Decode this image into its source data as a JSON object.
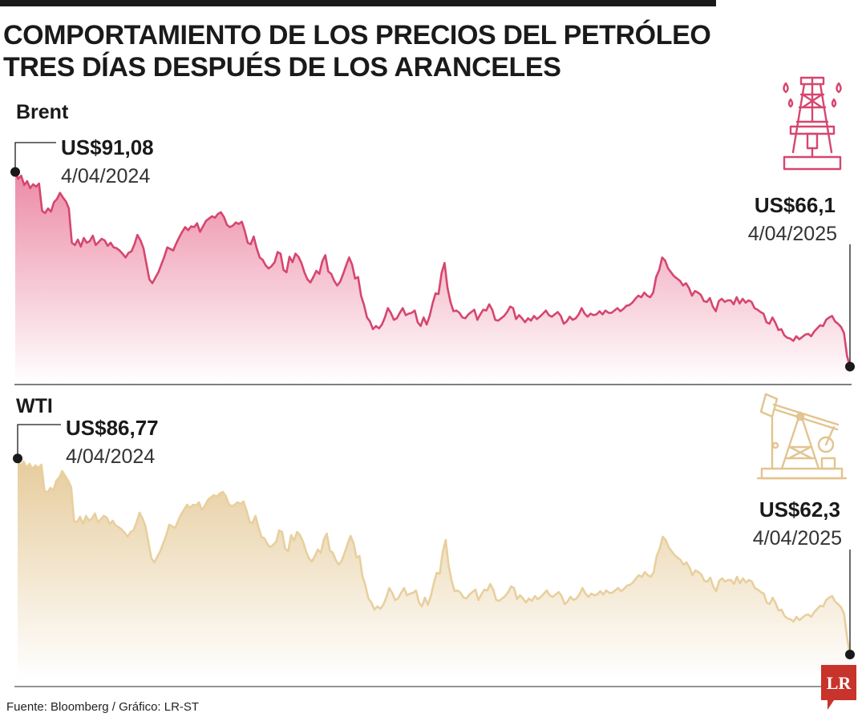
{
  "title_lines": [
    "COMPORTAMIENTO DE LOS PRECIOS DEL PETRÓLEO",
    "TRES DÍAS DESPUÉS DE LOS ARANCELES"
  ],
  "source": "Fuente: Bloomberg / Gráfico: LR-ST",
  "logo_text": "LR",
  "colors": {
    "brent": "#d6466f",
    "brent_fill": "#ee8ba8",
    "wti": "#e8cf9e",
    "wti_fill": "#e8d2a6",
    "ink": "#1a1a1a",
    "logo": "#c8332b"
  },
  "icons": {
    "brent": "oil-derrick-icon",
    "wti": "pumpjack-icon"
  },
  "chart_data": [
    {
      "type": "area",
      "series_label": "Brent",
      "start": {
        "value_label": "US$91,08",
        "date_label": "4/04/2024",
        "value": 91.08
      },
      "end": {
        "value_label": "US$66,1",
        "date_label": "4/04/2025",
        "value": 66.1
      },
      "x_range": [
        "4/04/2024",
        "4/04/2025"
      ],
      "ylim": [
        64,
        93
      ],
      "grid": false,
      "values": [
        91.08,
        90.2,
        90.6,
        89.4,
        89.9,
        89.0,
        89.5,
        89.2,
        89.6,
        86.1,
        85.8,
        86.4,
        86.0,
        87.2,
        87.6,
        88.4,
        87.8,
        87.3,
        86.4,
        82.0,
        81.7,
        82.4,
        81.5,
        82.6,
        82.0,
        82.2,
        82.9,
        81.7,
        82.1,
        82.5,
        82.3,
        81.6,
        82.0,
        81.4,
        81.3,
        81.0,
        80.6,
        80.1,
        80.7,
        80.9,
        81.8,
        83.0,
        82.3,
        81.3,
        79.3,
        77.3,
        76.8,
        77.5,
        78.2,
        79.2,
        80.2,
        81.4,
        81.2,
        81.0,
        81.9,
        82.7,
        83.4,
        84.0,
        83.6,
        84.1,
        84.0,
        84.5,
        83.4,
        84.1,
        84.8,
        85.1,
        85.4,
        85.2,
        85.7,
        85.9,
        85.3,
        84.3,
        84.0,
        84.2,
        84.6,
        84.4,
        84.7,
        83.5,
        82.0,
        81.8,
        82.8,
        81.3,
        80.1,
        79.8,
        79.1,
        78.7,
        79.0,
        79.5,
        80.8,
        80.6,
        78.5,
        78.2,
        80.2,
        79.5,
        80.6,
        80.2,
        79.4,
        78.2,
        77.3,
        76.9,
        77.6,
        78.4,
        78.0,
        79.6,
        80.4,
        78.3,
        78.0,
        77.1,
        76.5,
        77.0,
        78.0,
        79.1,
        80.1,
        79.2,
        77.4,
        77.6,
        75.2,
        74.0,
        72.4,
        71.9,
        70.9,
        71.3,
        71.0,
        71.5,
        72.4,
        73.6,
        73.0,
        72.1,
        72.3,
        73.0,
        73.6,
        72.7,
        72.9,
        73.0,
        73.3,
        71.8,
        71.3,
        72.4,
        71.5,
        72.6,
        74.2,
        75.5,
        75.4,
        78.1,
        79.4,
        76.2,
        74.4,
        73.2,
        73.3,
        73.0,
        72.4,
        72.3,
        72.8,
        73.1,
        73.4,
        72.1,
        72.8,
        73.4,
        73.3,
        74.1,
        73.4,
        72.1,
        72.0,
        72.3,
        72.6,
        73.1,
        73.8,
        73.6,
        72.2,
        72.7,
        72.3,
        71.8,
        72.3,
        72.0,
        72.6,
        72.2,
        72.5,
        72.9,
        73.3,
        72.7,
        72.5,
        72.8,
        73.1,
        72.6,
        71.6,
        71.9,
        72.5,
        72.1,
        72.3,
        72.8,
        73.6,
        72.9,
        72.5,
        72.9,
        72.7,
        72.8,
        73.2,
        72.8,
        73.3,
        73.0,
        73.0,
        73.3,
        73.6,
        73.2,
        73.5,
        73.9,
        74.0,
        74.3,
        74.8,
        75.2,
        75.0,
        75.6,
        75.2,
        75.0,
        75.6,
        77.6,
        78.5,
        80.1,
        79.7,
        78.7,
        78.2,
        77.7,
        77.4,
        77.1,
        76.5,
        76.8,
        76.2,
        75.2,
        75.8,
        75.6,
        75.3,
        74.5,
        74.4,
        74.9,
        73.8,
        73.2,
        74.5,
        74.8,
        74.4,
        74.6,
        74.6,
        74.1,
        75.0,
        74.2,
        74.8,
        74.3,
        74.6,
        74.4,
        73.6,
        73.4,
        73.1,
        72.9,
        71.8,
        71.6,
        72.4,
        71.7,
        70.8,
        70.9,
        70.1,
        69.8,
        69.7,
        69.4,
        70.0,
        69.6,
        69.9,
        70.2,
        70.3,
        70.0,
        70.6,
        71.0,
        71.4,
        71.3,
        72.1,
        72.4,
        72.6,
        71.9,
        71.6,
        71.2,
        70.4,
        67.5,
        66.1
      ]
    },
    {
      "type": "area",
      "series_label": "WTI",
      "start": {
        "value_label": "US$86,77",
        "date_label": "4/04/2024",
        "value": 86.77
      },
      "end": {
        "value_label": "US$62,3",
        "date_label": "4/04/2025",
        "value": 62.3
      },
      "x_range": [
        "4/04/2024",
        "4/04/2025"
      ],
      "ylim": [
        60,
        87.1
      ],
      "grid": false,
      "values": [
        86.77,
        85.8,
        86.4,
        85.6,
        86.1,
        85.5,
        85.9,
        85.6,
        86.0,
        82.8,
        82.5,
        83.1,
        82.8,
        84.0,
        84.4,
        85.2,
        84.6,
        84.0,
        83.2,
        79.0,
        78.8,
        79.5,
        78.6,
        79.6,
        79.0,
        79.3,
        79.9,
        78.8,
        79.2,
        79.6,
        79.4,
        78.6,
        79.0,
        78.4,
        78.2,
        77.9,
        77.5,
        77.0,
        77.6,
        77.8,
        78.8,
        80.0,
        79.3,
        78.3,
        76.3,
        74.3,
        73.8,
        74.5,
        75.2,
        76.2,
        77.2,
        78.5,
        78.3,
        78.1,
        79.0,
        79.8,
        80.4,
        81.0,
        80.6,
        81.0,
        80.9,
        81.3,
        80.3,
        80.9,
        81.6,
        81.9,
        82.2,
        82.0,
        82.4,
        82.6,
        82.1,
        81.1,
        80.8,
        81.0,
        81.3,
        81.1,
        81.4,
        80.3,
        78.9,
        78.7,
        79.6,
        78.2,
        77.0,
        76.8,
        76.1,
        75.7,
        76.0,
        76.4,
        77.8,
        77.6,
        75.5,
        75.2,
        77.2,
        76.5,
        77.6,
        77.2,
        76.4,
        75.2,
        74.3,
        73.9,
        74.6,
        75.4,
        75.0,
        76.6,
        77.4,
        75.3,
        75.0,
        74.1,
        73.5,
        74.0,
        75.0,
        76.1,
        77.1,
        76.2,
        74.4,
        74.6,
        72.1,
        70.9,
        69.3,
        68.8,
        67.9,
        68.3,
        68.0,
        68.5,
        69.4,
        70.6,
        70.0,
        69.1,
        69.3,
        70.0,
        70.6,
        69.7,
        69.9,
        70.0,
        70.3,
        68.8,
        68.3,
        69.4,
        68.5,
        69.6,
        71.2,
        72.5,
        72.4,
        75.1,
        76.6,
        73.4,
        71.5,
        70.2,
        70.3,
        70.0,
        69.4,
        69.3,
        69.8,
        70.1,
        70.4,
        69.1,
        69.8,
        70.4,
        70.3,
        71.1,
        70.4,
        69.1,
        69.0,
        69.3,
        69.6,
        70.1,
        70.8,
        70.6,
        69.2,
        69.7,
        69.3,
        68.8,
        69.3,
        69.0,
        69.6,
        69.2,
        69.5,
        69.9,
        70.3,
        69.7,
        69.5,
        69.8,
        70.1,
        69.6,
        68.6,
        68.9,
        69.5,
        69.1,
        69.3,
        69.8,
        70.6,
        69.9,
        69.5,
        69.9,
        69.7,
        69.8,
        70.2,
        69.8,
        70.3,
        70.0,
        70.0,
        70.3,
        70.6,
        70.2,
        70.5,
        70.9,
        71.0,
        71.3,
        71.8,
        72.2,
        72.0,
        72.6,
        72.2,
        72.0,
        72.6,
        74.6,
        75.5,
        77.0,
        76.6,
        75.7,
        75.2,
        74.7,
        74.4,
        74.1,
        73.5,
        73.8,
        73.2,
        72.2,
        72.8,
        72.6,
        72.3,
        71.5,
        71.4,
        71.9,
        70.8,
        70.2,
        71.5,
        71.8,
        71.4,
        71.6,
        71.6,
        71.1,
        72.0,
        71.2,
        71.8,
        71.3,
        71.6,
        71.4,
        70.6,
        70.4,
        70.1,
        69.9,
        68.8,
        68.6,
        69.4,
        68.7,
        67.8,
        67.9,
        67.1,
        66.8,
        66.7,
        66.4,
        67.0,
        66.6,
        66.9,
        67.2,
        67.3,
        67.0,
        67.6,
        68.0,
        68.4,
        68.3,
        69.1,
        69.4,
        69.6,
        68.9,
        68.6,
        68.2,
        67.4,
        64.5,
        62.3
      ]
    }
  ]
}
